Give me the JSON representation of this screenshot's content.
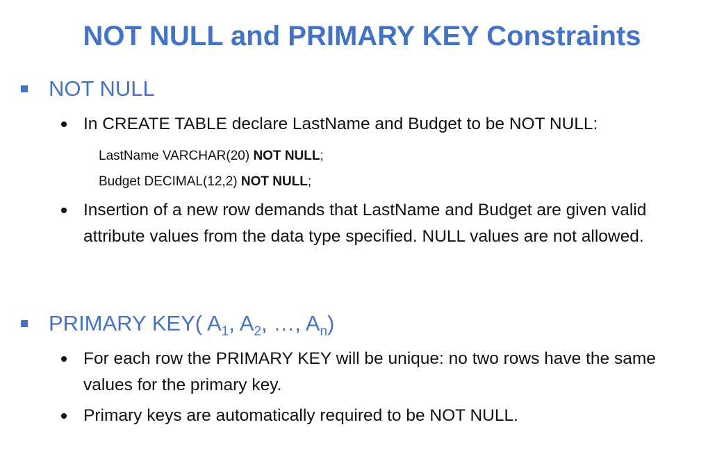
{
  "title": "NOT NULL and PRIMARY KEY Constraints",
  "section1": {
    "heading": "NOT NULL",
    "bullet1": "In CREATE TABLE declare LastName and Budget to be NOT NULL:",
    "code1_plain": "LastName VARCHAR(20) ",
    "code1_bold": "NOT NULL",
    "code1_end": ";",
    "code2_plain": "Budget DECIMAL(12,2) ",
    "code2_bold": "NOT NULL",
    "code2_end": ";",
    "bullet2": "Insertion of a new row demands that LastName and Budget are given valid attribute values from the data type specified. NULL values are not allowed."
  },
  "section2": {
    "heading_prefix": "PRIMARY KEY( A",
    "sub1": "1",
    "sep1": ", A",
    "sub2": "2",
    "sep2": ", …, A",
    "subn": "n",
    "heading_suffix": ")",
    "bullet1": "For each row the PRIMARY KEY will be unique: no two rows have the same values for the primary key.",
    "bullet2": "Primary keys are automatically required to be NOT NULL."
  },
  "colors": {
    "accent": "#4472c4",
    "text": "#111111"
  }
}
